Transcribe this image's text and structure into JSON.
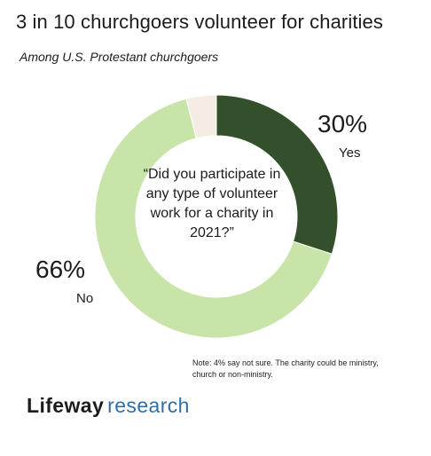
{
  "header": {
    "title": "3 in 10 churchgoers volunteer for charities",
    "subtitle": "Among U.S. Protestant churchgoers"
  },
  "center_question": "“Did you participate in any type of volunteer work for a charity in 2021?”",
  "note": "Note: 4% say not sure. The charity could be ministry, church or non-ministry.",
  "brand": {
    "part1": "Lifeway",
    "part2": "research"
  },
  "colors": {
    "yes": "#33502a",
    "no": "#c9e4a8",
    "not_sure": "#f3ede3"
  },
  "chart_data": {
    "type": "pie",
    "donut": true,
    "categories": [
      "Yes",
      "No",
      "Not sure"
    ],
    "values": [
      30,
      66,
      4
    ],
    "value_labels": [
      "30%",
      "66%",
      ""
    ]
  }
}
